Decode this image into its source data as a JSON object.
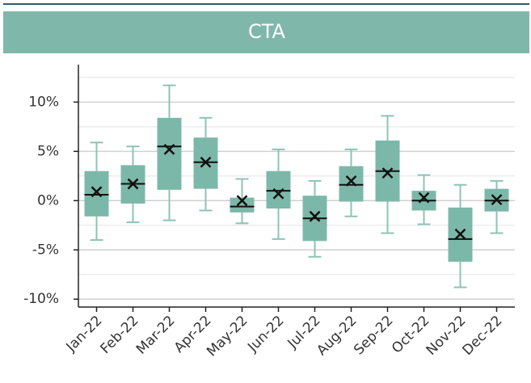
{
  "chart_data": {
    "type": "box",
    "title": "CTA",
    "categories": [
      "Jan-22",
      "Feb-22",
      "Mar-22",
      "Apr-22",
      "May-22",
      "Jun-22",
      "Jul-22",
      "Aug-22",
      "Sep-22",
      "Oct-22",
      "Nov-22",
      "Dec-22"
    ],
    "whisker_high": [
      5.9,
      5.5,
      11.7,
      8.4,
      2.2,
      5.2,
      2.0,
      5.2,
      8.6,
      2.6,
      1.6,
      2.0
    ],
    "q3": [
      3.0,
      3.6,
      8.4,
      6.4,
      0.3,
      3.0,
      0.5,
      3.5,
      6.1,
      1.0,
      -0.7,
      1.2
    ],
    "median": [
      0.6,
      1.7,
      5.5,
      3.9,
      -0.6,
      1.0,
      -1.8,
      1.6,
      3.0,
      0.0,
      -3.9,
      0.0
    ],
    "q1": [
      -1.6,
      -0.3,
      1.1,
      1.2,
      -1.2,
      -0.8,
      -4.1,
      -0.1,
      -0.1,
      -1.0,
      -6.2,
      -1.1
    ],
    "whisker_low": [
      -4.0,
      -2.2,
      -2.0,
      -1.0,
      -2.3,
      -3.9,
      -5.7,
      -1.6,
      -3.3,
      -2.4,
      -8.8,
      -3.3
    ],
    "mean": [
      0.9,
      1.7,
      5.2,
      3.9,
      0.0,
      0.7,
      -1.6,
      2.0,
      2.8,
      0.3,
      -3.4,
      0.1
    ],
    "color": "#7cb8a9",
    "ylim": [
      -10.8,
      13.8
    ],
    "yticks": [
      {
        "value": -10,
        "label": "-10%"
      },
      {
        "value": -5,
        "label": "-5%"
      },
      {
        "value": 0,
        "label": "0%"
      },
      {
        "value": 5,
        "label": "5%"
      },
      {
        "value": 10,
        "label": "10%"
      }
    ],
    "minor_yticks": [
      -7.5,
      -2.5,
      2.5,
      7.5,
      12.5
    ],
    "grid": true
  }
}
